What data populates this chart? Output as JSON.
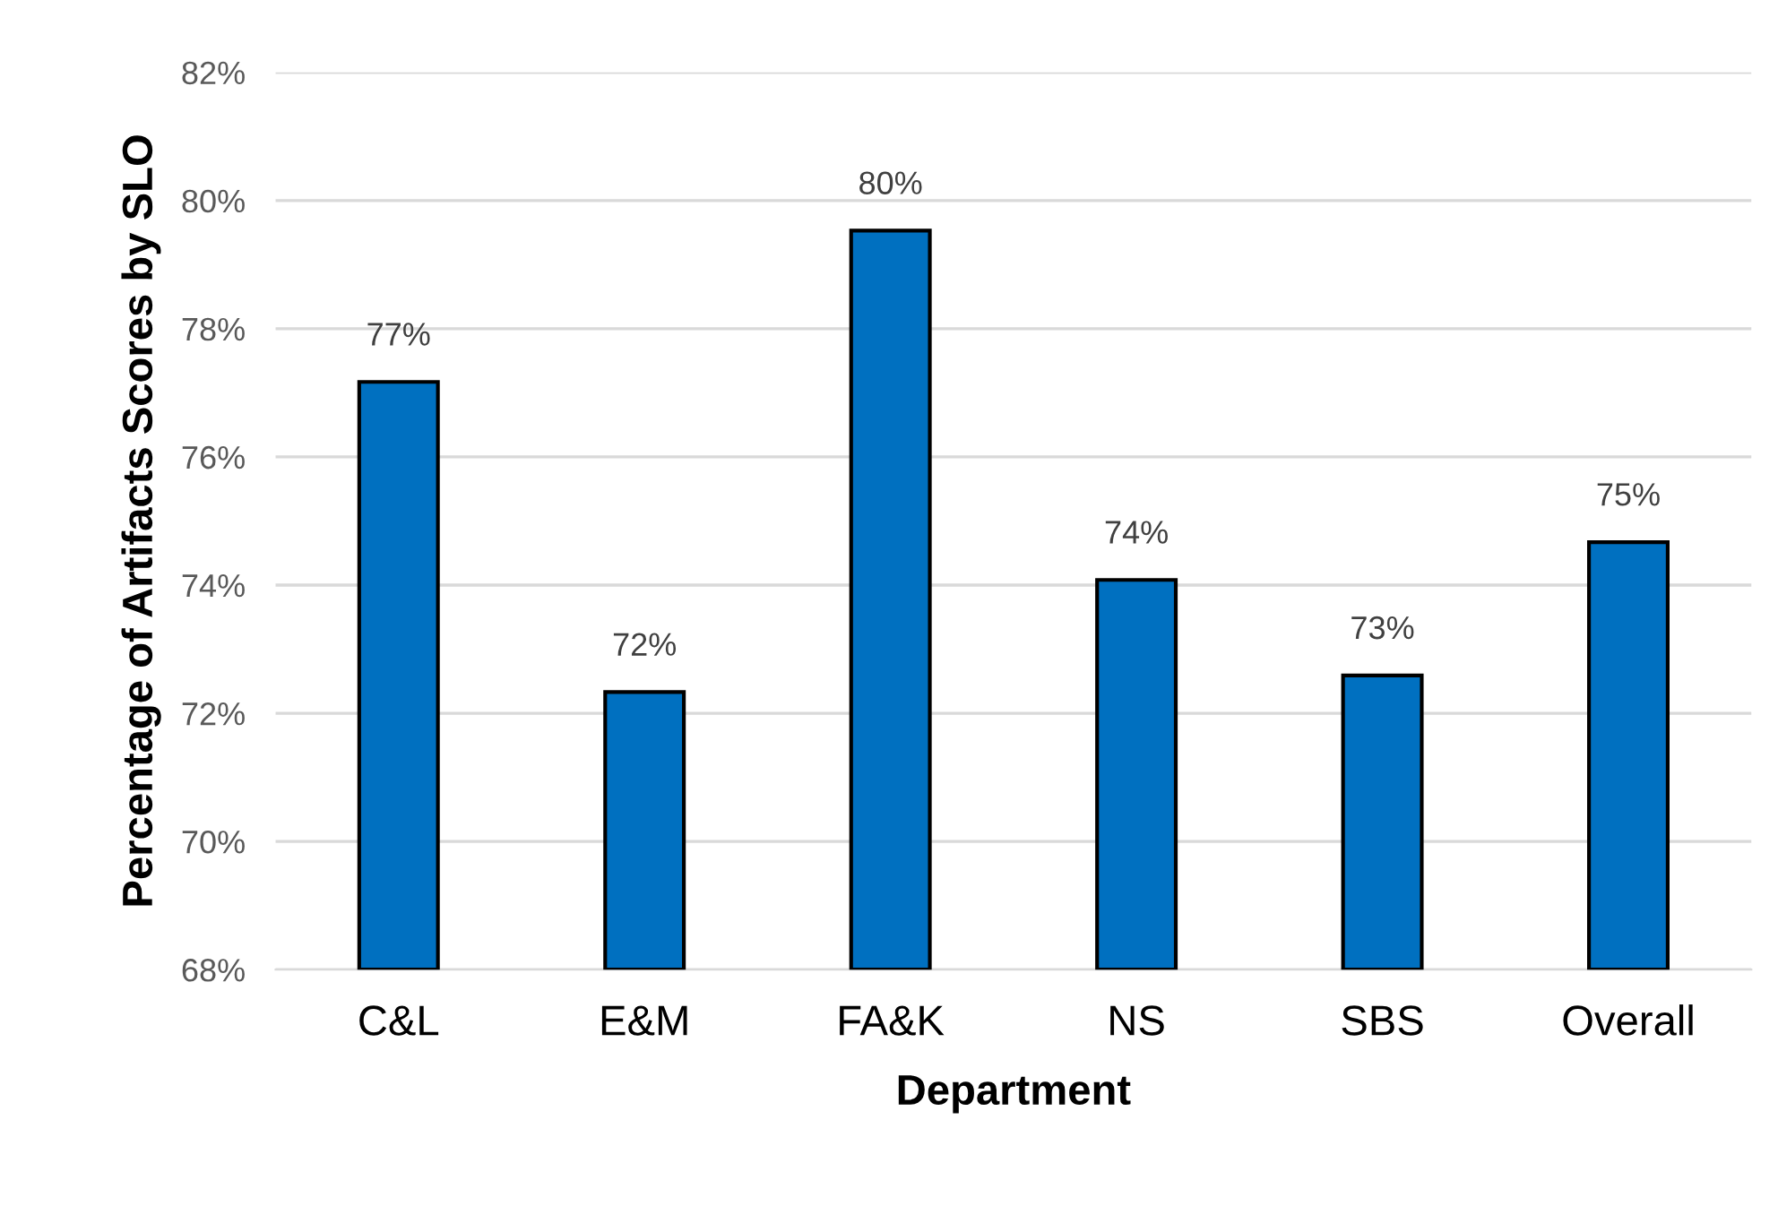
{
  "chart_data": {
    "type": "bar",
    "xlabel": "Department",
    "ylabel": "Percentage of Artifacts Scores by SLO",
    "categories": [
      "C&L",
      "E&M",
      "FA&K",
      "NS",
      "SBS",
      "Overall"
    ],
    "values": [
      77.17,
      72.33,
      79.53,
      74.08,
      72.59,
      74.67
    ],
    "value_labels": [
      "77%",
      "72%",
      "80%",
      "74%",
      "73%",
      "75%"
    ],
    "color": "#0070c0",
    "ylim": [
      68,
      82
    ],
    "yticks": [
      {
        "value": 68,
        "label": "68%"
      },
      {
        "value": 70,
        "label": "70%"
      },
      {
        "value": 72,
        "label": "72%"
      },
      {
        "value": 74,
        "label": "74%"
      },
      {
        "value": 76,
        "label": "76%"
      },
      {
        "value": 78,
        "label": "78%"
      },
      {
        "value": 80,
        "label": "80%"
      },
      {
        "value": 82,
        "label": "82%"
      }
    ],
    "grid": "y",
    "legend": false
  }
}
